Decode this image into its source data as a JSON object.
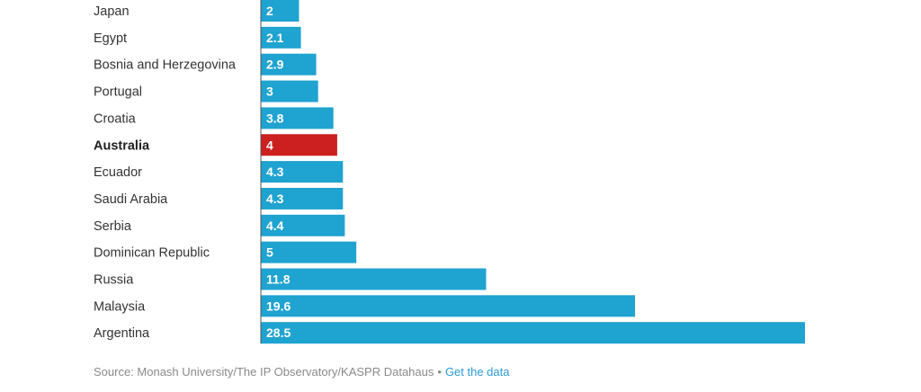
{
  "chart_data": {
    "type": "bar",
    "orientation": "horizontal",
    "categories": [
      "Japan",
      "Egypt",
      "Bosnia and Herzegovina",
      "Portugal",
      "Croatia",
      "Australia",
      "Ecuador",
      "Saudi Arabia",
      "Serbia",
      "Dominican Republic",
      "Russia",
      "Malaysia",
      "Argentina"
    ],
    "values": [
      2,
      2.1,
      2.9,
      3,
      3.8,
      4,
      4.3,
      4.3,
      4.4,
      5,
      11.8,
      19.6,
      28.5
    ],
    "value_labels": [
      "2",
      "2.1",
      "2.9",
      "3",
      "3.8",
      "4",
      "4.3",
      "4.3",
      "4.4",
      "5",
      "11.8",
      "19.6",
      "28.5"
    ],
    "highlight": "Australia",
    "colors": {
      "default": "#1fa3d0",
      "highlight": "#cc1f1f",
      "axis": "#555555"
    },
    "title": "",
    "xlabel": "",
    "ylabel": "",
    "xlim": [
      0,
      28.5
    ],
    "grid": false
  },
  "footer": {
    "source_text": "Source: Monash University/The IP Observatory/KASPR Datahaus",
    "separator": "•",
    "link_text": "Get the data"
  }
}
